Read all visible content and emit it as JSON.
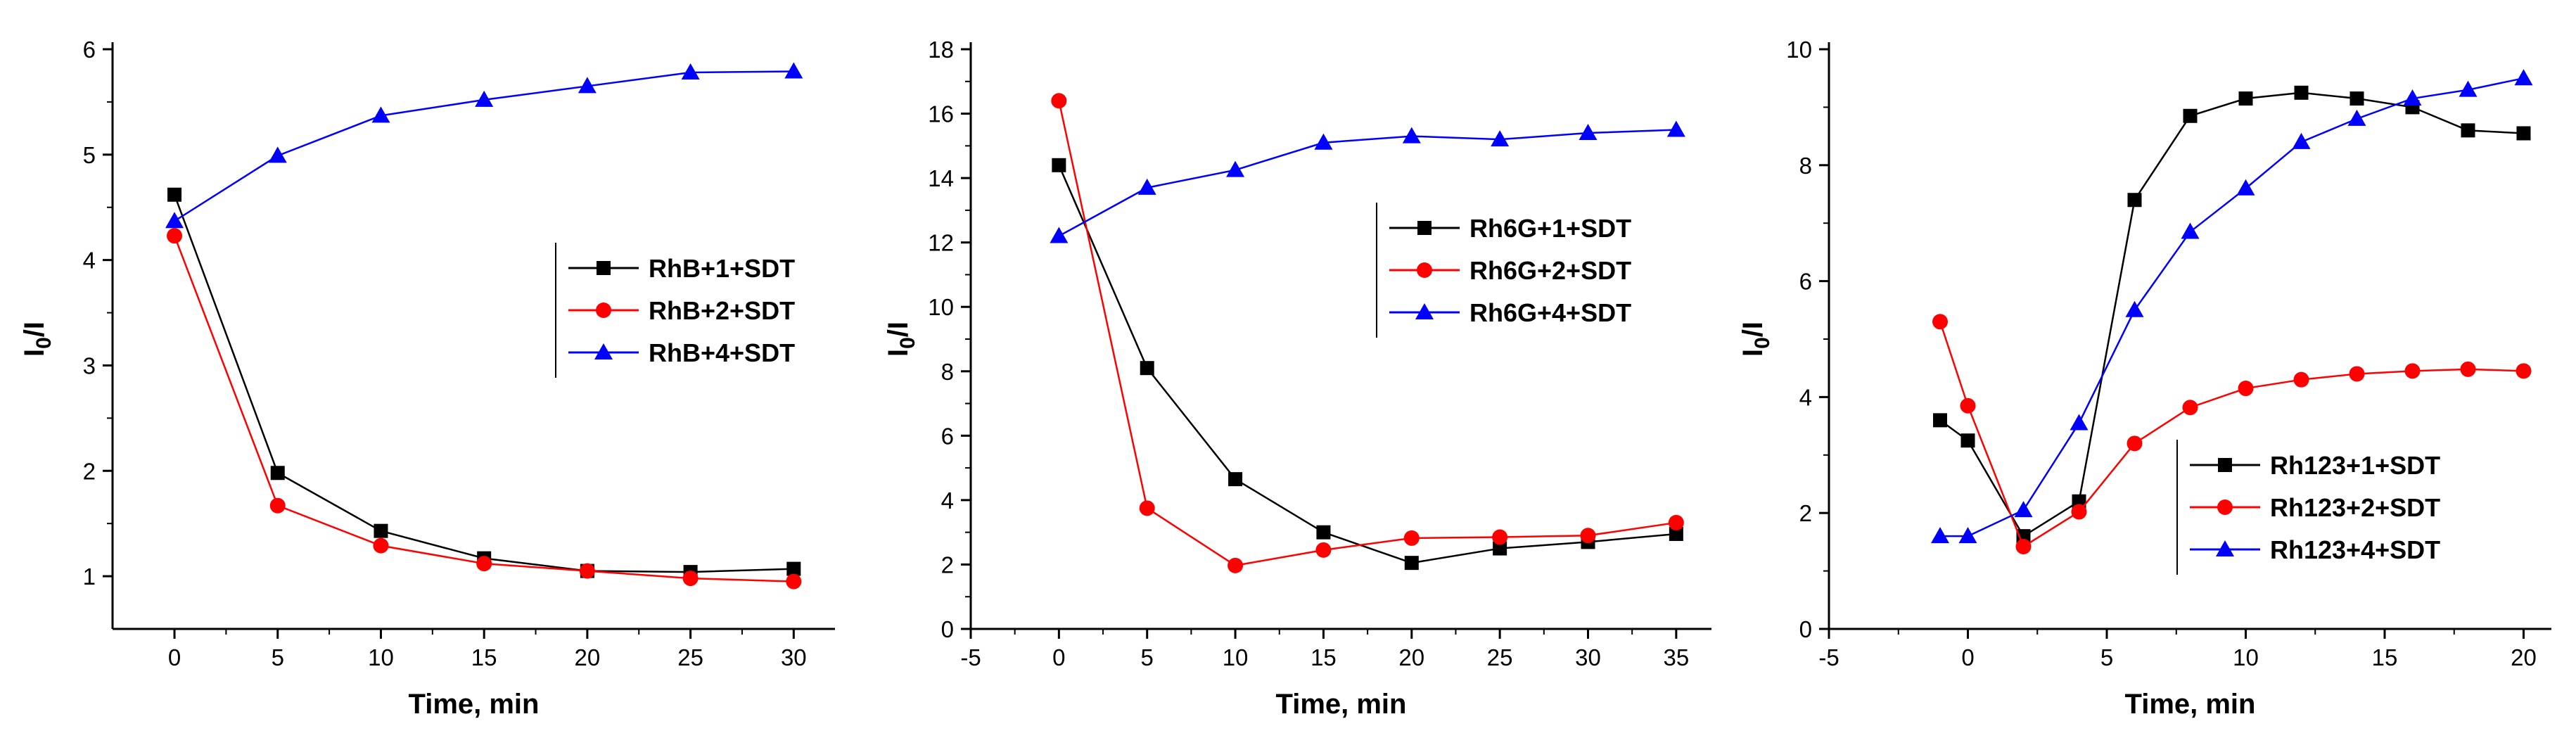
{
  "chart_data": [
    {
      "type": "line",
      "title": "",
      "xlabel": "Time, min",
      "ylabel": "I0/I",
      "ylabel_main": "I",
      "ylabel_sub": "0",
      "ylabel_tail": "/I",
      "xlim": [
        -3,
        32
      ],
      "ylim": [
        0.5,
        6
      ],
      "xticks": [
        0,
        5,
        10,
        15,
        20,
        25,
        30
      ],
      "xtick_labels": [
        "0",
        "5",
        "10",
        "15",
        "20",
        "25",
        "30"
      ],
      "yticks": [
        1,
        2,
        3,
        4,
        5,
        6
      ],
      "ytick_labels": [
        "1",
        "2",
        "3",
        "4",
        "5",
        "6"
      ],
      "legend_position": "middle-right",
      "series": [
        {
          "name": "RhB+1+SDT",
          "color": "#000000",
          "marker": "square",
          "x": [
            0,
            5,
            10,
            15,
            20,
            25,
            30
          ],
          "y": [
            4.62,
            1.98,
            1.43,
            1.17,
            1.05,
            1.04,
            1.07
          ]
        },
        {
          "name": "RhB+2+SDT",
          "color": "#ff0000",
          "marker": "circle",
          "x": [
            0,
            5,
            10,
            15,
            20,
            25,
            30
          ],
          "y": [
            4.23,
            1.67,
            1.29,
            1.12,
            1.05,
            0.98,
            0.95
          ]
        },
        {
          "name": "RhB+4+SDT",
          "color": "#0000ff",
          "marker": "triangle",
          "x": [
            0,
            5,
            10,
            15,
            20,
            25,
            30
          ],
          "y": [
            4.37,
            4.99,
            5.37,
            5.52,
            5.65,
            5.78,
            5.79
          ]
        }
      ]
    },
    {
      "type": "line",
      "title": "",
      "xlabel": "Time, min",
      "ylabel": "I0/I",
      "ylabel_main": "I",
      "ylabel_sub": "0",
      "ylabel_tail": "/I",
      "xlim": [
        -5,
        37
      ],
      "ylim": [
        0,
        18
      ],
      "xticks": [
        -5,
        0,
        5,
        10,
        15,
        20,
        25,
        30,
        35
      ],
      "xtick_labels": [
        "-5",
        "0",
        "5",
        "10",
        "15",
        "20",
        "25",
        "30",
        "35"
      ],
      "yticks": [
        0,
        2,
        4,
        6,
        8,
        10,
        12,
        14,
        16,
        18
      ],
      "ytick_labels": [
        "0",
        "2",
        "4",
        "6",
        "8",
        "10",
        "12",
        "14",
        "16",
        "18"
      ],
      "legend_position": "top-right",
      "series": [
        {
          "name": "Rh6G+1+SDT",
          "color": "#000000",
          "marker": "square",
          "x": [
            0,
            5,
            10,
            15,
            20,
            25,
            30,
            35
          ],
          "y": [
            14.4,
            8.1,
            4.65,
            3.0,
            2.05,
            2.5,
            2.7,
            2.95
          ]
        },
        {
          "name": "Rh6G+2+SDT",
          "color": "#ff0000",
          "marker": "circle",
          "x": [
            0,
            5,
            10,
            15,
            20,
            25,
            30,
            35
          ],
          "y": [
            16.4,
            3.75,
            1.97,
            2.45,
            2.82,
            2.85,
            2.9,
            3.3
          ]
        },
        {
          "name": "Rh6G+4+SDT",
          "color": "#0000ff",
          "marker": "triangle",
          "x": [
            0,
            5,
            10,
            15,
            20,
            25,
            30,
            35
          ],
          "y": [
            12.2,
            13.7,
            14.25,
            15.1,
            15.3,
            15.2,
            15.4,
            15.5
          ]
        }
      ]
    },
    {
      "type": "line",
      "title": "",
      "xlabel": "Time, min",
      "ylabel": "I0/I",
      "ylabel_main": "I",
      "ylabel_sub": "0",
      "ylabel_tail": "/I",
      "xlim": [
        -5,
        21
      ],
      "ylim": [
        0,
        10
      ],
      "xticks": [
        -5,
        0,
        5,
        10,
        15,
        20
      ],
      "xtick_labels": [
        "-5",
        "0",
        "5",
        "10",
        "15",
        "20"
      ],
      "yticks": [
        0,
        2,
        4,
        6,
        8,
        10
      ],
      "ytick_labels": [
        "0",
        "2",
        "4",
        "6",
        "8",
        "10"
      ],
      "legend_position": "bottom-right",
      "series": [
        {
          "name": "Rh123+1+SDT",
          "color": "#000000",
          "marker": "square",
          "x": [
            -1,
            0,
            2,
            4,
            6,
            8,
            10,
            12,
            14,
            16,
            18,
            20
          ],
          "y": [
            3.6,
            3.25,
            1.6,
            2.2,
            7.4,
            8.85,
            9.15,
            9.25,
            9.15,
            9.0,
            8.6,
            8.55
          ]
        },
        {
          "name": "Rh123+2+SDT",
          "color": "#ff0000",
          "marker": "circle",
          "x": [
            -1,
            0,
            2,
            4,
            6,
            8,
            10,
            12,
            14,
            16,
            18,
            20
          ],
          "y": [
            5.3,
            3.85,
            1.42,
            2.02,
            3.2,
            3.82,
            4.15,
            4.3,
            4.4,
            4.45,
            4.48,
            4.45
          ]
        },
        {
          "name": "Rh123+4+SDT",
          "color": "#0000ff",
          "marker": "triangle",
          "x": [
            -1,
            0,
            2,
            4,
            6,
            8,
            10,
            12,
            14,
            16,
            18,
            20
          ],
          "y": [
            1.6,
            1.6,
            2.05,
            3.55,
            5.5,
            6.85,
            7.6,
            8.4,
            8.8,
            9.15,
            9.3,
            9.5
          ]
        }
      ]
    }
  ]
}
